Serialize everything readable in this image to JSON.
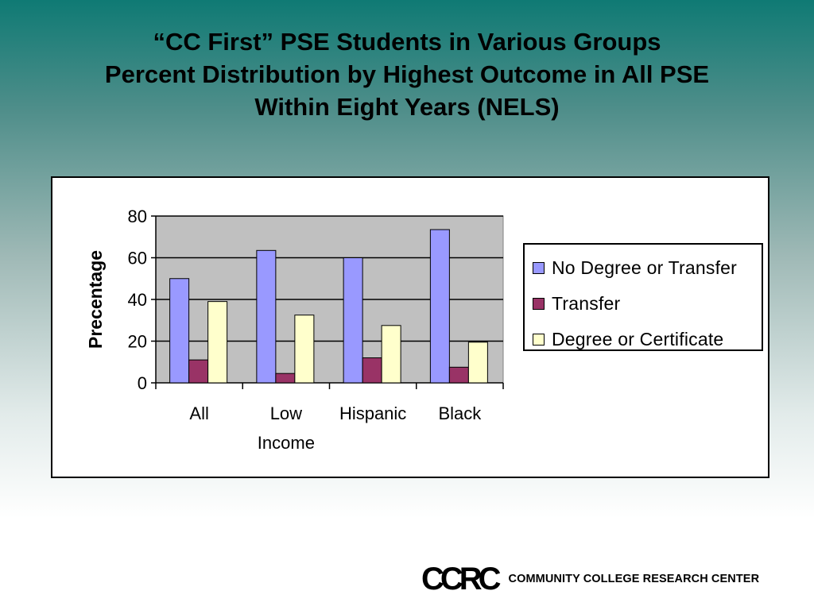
{
  "title_lines": [
    "“CC First” PSE Students in Various Groups",
    "Percent Distribution by Highest Outcome in All PSE",
    "Within Eight Years (NELS)"
  ],
  "logo": {
    "mark": "CCRC",
    "text": "COMMUNITY COLLEGE RESEARCH CENTER"
  },
  "chart_data": {
    "type": "bar",
    "ylabel": "Precentage",
    "xlabel": "",
    "ylim": [
      0,
      80
    ],
    "yticks": [
      0,
      20,
      40,
      60,
      80
    ],
    "grid": true,
    "legend_position": "right",
    "categories": [
      [
        "All"
      ],
      [
        "Low",
        "Income"
      ],
      [
        "Hispanic"
      ],
      [
        "Black"
      ]
    ],
    "series": [
      {
        "name": "No Degree or Transfer",
        "color": "#9999ff",
        "values": [
          50,
          63.5,
          60,
          73.5
        ]
      },
      {
        "name": "Transfer",
        "color": "#993366",
        "values": [
          11,
          4.5,
          12,
          7.5
        ]
      },
      {
        "name": "Degree or Certificate",
        "color": "#ffffcc",
        "values": [
          39,
          32.5,
          27.5,
          19.5
        ]
      }
    ]
  }
}
